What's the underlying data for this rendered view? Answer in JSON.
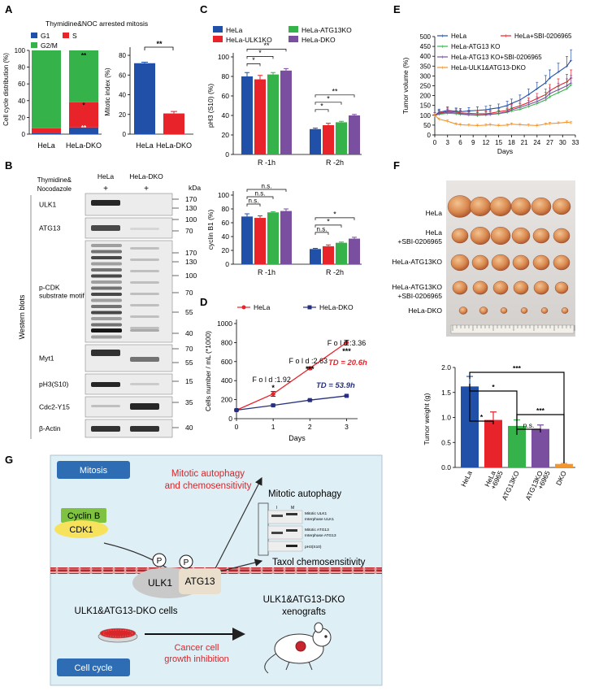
{
  "colors": {
    "blue": "#2150a8",
    "red": "#e8232a",
    "green": "#35b34a",
    "purple": "#7b4fa0",
    "orange": "#f3962c",
    "darkred": "#c8262f",
    "navy": "#27307f",
    "panel_bg": "#dfeff6",
    "tag_blue": "#2e6db3",
    "cyclin_green": "#7fc241",
    "cdk_yellow": "#f6e25c"
  },
  "panel_letters": [
    "A",
    "B",
    "C",
    "D",
    "E",
    "F",
    "G"
  ],
  "panelA": {
    "title": "Thymidine&NOC arrested mitosis",
    "legend": [
      "G1",
      "S",
      "G2/M"
    ],
    "stack_chart": {
      "type": "bar",
      "stacked": true,
      "ylabel": "Cell cycle distribution (%)",
      "yticks": [
        "0",
        "20",
        "40",
        "60",
        "80",
        "100"
      ],
      "ylim": [
        0,
        100
      ],
      "categories": [
        "HeLa",
        "HeLa-DKO"
      ],
      "series": [
        {
          "name": "G1",
          "values": [
            1,
            8
          ]
        },
        {
          "name": "S",
          "values": [
            6,
            30
          ]
        },
        {
          "name": "G2/M",
          "values": [
            93,
            62
          ]
        }
      ],
      "annotations": [
        "**",
        "*",
        "**"
      ]
    },
    "mitotic_chart": {
      "type": "bar",
      "ylabel": "Mitotic index (%)",
      "yticks": [
        "0",
        "20",
        "40",
        "60",
        "80"
      ],
      "ylim": [
        0,
        80
      ],
      "categories": [
        "HeLa",
        "HeLa-DKO"
      ],
      "values": [
        72,
        21
      ],
      "errors": [
        1,
        2
      ],
      "annotations": [
        "**"
      ]
    }
  },
  "panelB": {
    "treatment": "Thymidine&\nNocodazole",
    "lane_names": [
      "HeLa",
      "HeLa-DKO"
    ],
    "lane_signs": [
      "+",
      "+"
    ],
    "kda": "kDa",
    "side_label": "Western blots",
    "blots": [
      {
        "label": "ULK1",
        "markers": [
          "170",
          "130"
        ]
      },
      {
        "label": "ATG13",
        "markers": [
          "100",
          "70"
        ]
      },
      {
        "label": "p-CDK\nsubstrate motif",
        "markers": [
          "170",
          "130",
          "100",
          "70",
          "55",
          "40"
        ]
      },
      {
        "label": "Myt1",
        "markers": [
          "70",
          "55"
        ]
      },
      {
        "label": "pH3(S10)",
        "markers": [
          "15"
        ]
      },
      {
        "label": "Cdc2-Y15",
        "markers": [
          "35"
        ]
      },
      {
        "label": "β-Actin",
        "markers": [
          "40"
        ]
      }
    ]
  },
  "panelC": {
    "legend": [
      "HeLa",
      "HeLa-ULK1KO",
      "HeLa-ATG13KO",
      "HeLa-DKO"
    ],
    "chart_data": [
      {
        "type": "bar",
        "ylabel": "pH3 (S10) (%)",
        "yticks": [
          "0",
          "20",
          "40",
          "60",
          "80",
          "100"
        ],
        "ylim": [
          0,
          100
        ],
        "categories": [
          "R -1h",
          "R -2h"
        ],
        "series": [
          {
            "name": "HeLa",
            "values": [
              80,
              26
            ],
            "errors": [
              4,
              1
            ]
          },
          {
            "name": "HeLa-ULK1KO",
            "values": [
              77,
              30
            ],
            "errors": [
              4,
              2
            ]
          },
          {
            "name": "HeLa-ATG13KO",
            "values": [
              82,
              33
            ],
            "errors": [
              2,
              1
            ]
          },
          {
            "name": "HeLa-DKO",
            "values": [
              86,
              40
            ],
            "errors": [
              2,
              1
            ]
          }
        ],
        "brackets": [
          "*",
          "*",
          "**",
          "*",
          "*",
          "**"
        ]
      },
      {
        "type": "bar",
        "ylabel": "cyclin B1 (%)",
        "yticks": [
          "0",
          "20",
          "40",
          "60",
          "80",
          "100"
        ],
        "ylim": [
          0,
          100
        ],
        "categories": [
          "R -1h",
          "R -2h"
        ],
        "series": [
          {
            "name": "HeLa",
            "values": [
              69,
              22
            ],
            "errors": [
              4,
              1
            ]
          },
          {
            "name": "HeLa-ULK1KO",
            "values": [
              67,
              26
            ],
            "errors": [
              3,
              2
            ]
          },
          {
            "name": "HeLa-ATG13KO",
            "values": [
              75,
              31
            ],
            "errors": [
              1,
              1
            ]
          },
          {
            "name": "HeLa-DKO",
            "values": [
              77,
              37
            ],
            "errors": [
              3,
              2
            ]
          }
        ],
        "brackets": [
          "n.s.",
          "n.s.",
          "n.s.",
          "n.s.",
          "*",
          "*"
        ]
      }
    ]
  },
  "panelD": {
    "chart_data": {
      "type": "line",
      "xlabel": "Days",
      "ylabel": "Cells number / mL (*1000)",
      "xticks": [
        "0",
        "1",
        "2",
        "3"
      ],
      "yticks": [
        "0",
        "200",
        "400",
        "600",
        "800",
        "1000"
      ],
      "xlim": [
        0,
        3.3
      ],
      "ylim": [
        0,
        1000
      ],
      "series": [
        {
          "name": "HeLa",
          "x": [
            0,
            1,
            2,
            3
          ],
          "y": [
            90,
            260,
            530,
            800
          ],
          "errors": [
            5,
            25,
            15,
            25
          ]
        },
        {
          "name": "HeLa-DKO",
          "x": [
            0,
            1,
            2,
            3
          ],
          "y": [
            90,
            140,
            195,
            240
          ],
          "errors": [
            5,
            8,
            8,
            8
          ]
        }
      ],
      "fold_labels": [
        "F o l d :1.92",
        "F o l d :2.63",
        "F o l d :3.36"
      ],
      "stars": [
        "*",
        "***",
        "***"
      ],
      "td_hela": "TD = 20.6h",
      "td_dko": "TD = 53.9h"
    }
  },
  "panelE": {
    "legend": [
      "HeLa",
      "HeLa+SBI-0206965",
      "HeLa-ATG13 KO",
      "HeLa-ATG13 KO+SBI-0206965",
      "HeLa-ULK1&ATG13-DKO"
    ],
    "chart_data": {
      "type": "line",
      "xlabel": "Days",
      "ylabel": "Tumor volume (%)",
      "xticks": [
        "0",
        "3",
        "6",
        "9",
        "12",
        "15",
        "18",
        "21",
        "24",
        "27",
        "30",
        "33"
      ],
      "yticks": [
        "0",
        "50",
        "100",
        "150",
        "200",
        "250",
        "300",
        "350",
        "400",
        "450",
        "500"
      ],
      "xlim": [
        0,
        33
      ],
      "ylim": [
        0,
        500
      ],
      "x": [
        0,
        1,
        3,
        5,
        6,
        8,
        10,
        12,
        13,
        15,
        17,
        18,
        20,
        22,
        24,
        26,
        27,
        29,
        31,
        32
      ],
      "series": [
        {
          "name": "HeLa",
          "values": [
            100,
            115,
            125,
            120,
            118,
            122,
            125,
            128,
            132,
            138,
            150,
            160,
            178,
            205,
            235,
            265,
            290,
            320,
            350,
            380
          ]
        },
        {
          "name": "HeLa+SBI-0206965",
          "values": [
            100,
            110,
            120,
            118,
            112,
            110,
            108,
            108,
            110,
            118,
            125,
            135,
            148,
            165,
            185,
            205,
            225,
            250,
            270,
            290
          ]
        },
        {
          "name": "HeLa-ATG13 KO",
          "values": [
            100,
            105,
            110,
            108,
            105,
            102,
            100,
            102,
            104,
            108,
            115,
            122,
            130,
            145,
            160,
            178,
            195,
            215,
            235,
            255
          ]
        },
        {
          "name": "HeLa-ATG13 KO+SBI-0206965",
          "values": [
            100,
            108,
            115,
            112,
            108,
            104,
            102,
            103,
            105,
            110,
            118,
            128,
            140,
            155,
            170,
            190,
            210,
            230,
            250,
            265
          ]
        },
        {
          "name": "HeLa-ULK1&ATG13-DKO",
          "values": [
            100,
            80,
            70,
            55,
            52,
            50,
            48,
            50,
            52,
            48,
            50,
            55,
            52,
            50,
            48,
            55,
            58,
            60,
            65,
            62
          ]
        }
      ]
    }
  },
  "panelF": {
    "photo_labels": [
      "HeLa",
      "HeLa\n+SBI-0206965",
      "HeLa-ATG13KO",
      "HeLa-ATG13KO\n+SBI-0206965",
      "HeLa-DKO"
    ],
    "chart_data": {
      "type": "bar",
      "ylabel": "Tumor weight (g)",
      "yticks": [
        "0.0",
        "0.5",
        "1.0",
        "1.5",
        "2.0"
      ],
      "ylim": [
        0,
        2.0
      ],
      "categories": [
        "HeLa",
        "HeLa\n+6965",
        "ATG13KO",
        "ATG13KO\n+6965",
        "DKO"
      ],
      "values": [
        1.62,
        0.95,
        0.83,
        0.77,
        0.07
      ],
      "errors": [
        0.2,
        0.16,
        0.12,
        0.08,
        0.01
      ],
      "brackets": [
        "*",
        "*",
        "***",
        "n.s.",
        "***"
      ]
    }
  },
  "panelG": {
    "mitosis_tag": "Mitosis",
    "cellcycle_tag": "Cell cycle",
    "red_title": "Mitotic autophagy\nand chemosensitivity",
    "cyclin": "Cyclin B",
    "cdk": "CDK1",
    "ulk": "ULK1",
    "atg": "ATG13",
    "p": "P",
    "arrow_top": "Mitotic autophagy",
    "arrow_bottom": "Taxol chemosensitivity",
    "mini_blot_lanes": [
      "I",
      "M"
    ],
    "mini_blot_labels": [
      "Mitotic ULK1",
      "Interphase ULK1",
      "Mitotic ATG13",
      "Interphase ATG13",
      "pH3(S10)"
    ],
    "dko_cells": "ULK1&ATG13-DKO cells",
    "xenograft": "ULK1&ATG13-DKO\nxenografts",
    "inhibition": "Cancer cell\ngrowth inhibition"
  }
}
